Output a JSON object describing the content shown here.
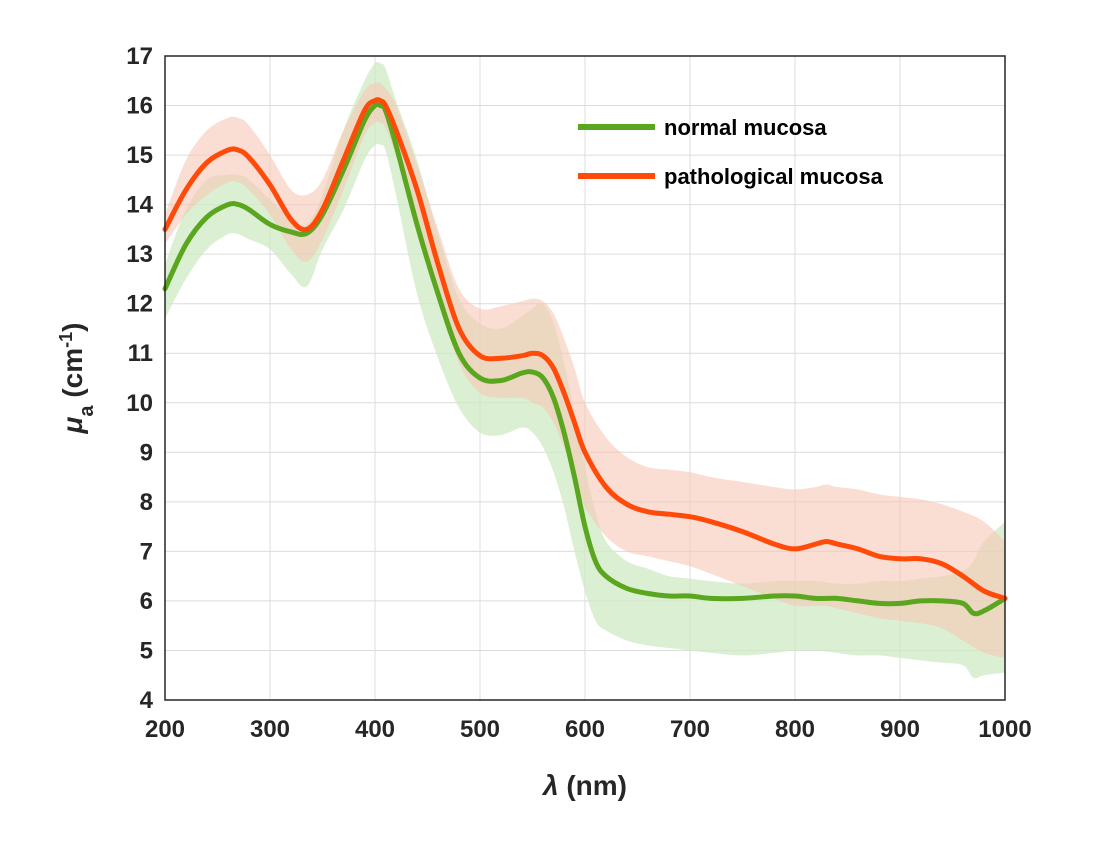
{
  "chart_data": {
    "type": "line",
    "xlabel": {
      "symbol": "λ",
      "unit": " (nm)"
    },
    "ylabel": {
      "symbol": "μ",
      "sub": "a",
      "unit_open": " (cm",
      "sup": "-1",
      "unit_close": ")"
    },
    "xlim": [
      200,
      1000
    ],
    "ylim": [
      4,
      17
    ],
    "xticks": [
      200,
      300,
      400,
      500,
      600,
      700,
      800,
      900,
      1000
    ],
    "yticks": [
      4,
      5,
      6,
      7,
      8,
      9,
      10,
      11,
      12,
      13,
      14,
      15,
      16,
      17
    ],
    "grid": true,
    "legend_position": "top-right",
    "series": [
      {
        "name": "normal mucosa",
        "color": "#5aa61e",
        "band_color": "#cfe9c4",
        "x": [
          200,
          220,
          240,
          260,
          270,
          280,
          300,
          320,
          335,
          350,
          370,
          390,
          400,
          405,
          410,
          420,
          440,
          460,
          480,
          500,
          520,
          540,
          550,
          560,
          570,
          580,
          590,
          600,
          610,
          620,
          640,
          660,
          680,
          700,
          720,
          750,
          780,
          800,
          820,
          840,
          860,
          880,
          900,
          920,
          940,
          960,
          970,
          980,
          1000
        ],
        "y": [
          12.3,
          13.2,
          13.75,
          14.0,
          14.0,
          13.9,
          13.6,
          13.45,
          13.42,
          13.8,
          14.7,
          15.7,
          16.0,
          16.0,
          15.9,
          15.2,
          13.6,
          12.2,
          11.0,
          10.5,
          10.45,
          10.6,
          10.62,
          10.5,
          10.1,
          9.4,
          8.5,
          7.5,
          6.8,
          6.5,
          6.25,
          6.15,
          6.1,
          6.1,
          6.05,
          6.05,
          6.1,
          6.1,
          6.05,
          6.05,
          6.0,
          5.95,
          5.95,
          6.0,
          6.0,
          5.95,
          5.75,
          5.8,
          6.05
        ],
        "upper": [
          12.8,
          13.9,
          14.5,
          14.6,
          14.6,
          14.5,
          14.1,
          13.7,
          13.6,
          14.2,
          15.5,
          16.5,
          16.85,
          16.85,
          16.75,
          16.1,
          14.9,
          13.4,
          12.1,
          11.6,
          11.5,
          11.75,
          11.9,
          12.0,
          11.6,
          10.8,
          9.8,
          8.7,
          7.8,
          7.2,
          6.8,
          6.65,
          6.5,
          6.45,
          6.4,
          6.35,
          6.4,
          6.4,
          6.4,
          6.35,
          6.35,
          6.4,
          6.4,
          6.45,
          6.5,
          6.6,
          6.8,
          7.2,
          7.6
        ],
        "lower": [
          11.7,
          12.5,
          13.1,
          13.4,
          13.4,
          13.3,
          13.1,
          12.6,
          12.35,
          13.1,
          13.9,
          14.9,
          15.2,
          15.2,
          15.1,
          14.2,
          12.2,
          10.9,
          9.9,
          9.4,
          9.35,
          9.5,
          9.4,
          9.1,
          8.6,
          7.9,
          7.0,
          6.2,
          5.6,
          5.4,
          5.2,
          5.1,
          5.05,
          5.0,
          4.95,
          4.9,
          4.95,
          5.0,
          5.0,
          4.95,
          4.9,
          4.9,
          4.85,
          4.8,
          4.75,
          4.7,
          4.45,
          4.5,
          4.55
        ]
      },
      {
        "name": "pathological mucosa",
        "color": "#ff4a0a",
        "band_color": "#f7c7b5",
        "x": [
          200,
          220,
          240,
          260,
          270,
          280,
          300,
          320,
          335,
          350,
          370,
          390,
          400,
          405,
          410,
          420,
          440,
          460,
          480,
          500,
          520,
          540,
          550,
          560,
          570,
          580,
          590,
          600,
          620,
          640,
          660,
          680,
          700,
          720,
          750,
          780,
          800,
          820,
          830,
          840,
          860,
          880,
          900,
          920,
          940,
          960,
          980,
          1000
        ],
        "y": [
          13.5,
          14.3,
          14.85,
          15.1,
          15.1,
          14.95,
          14.4,
          13.7,
          13.5,
          13.9,
          14.9,
          15.9,
          16.1,
          16.1,
          16.0,
          15.5,
          14.3,
          12.8,
          11.5,
          10.95,
          10.9,
          10.95,
          11.0,
          10.95,
          10.7,
          10.2,
          9.6,
          9.0,
          8.3,
          7.95,
          7.8,
          7.75,
          7.7,
          7.6,
          7.4,
          7.15,
          7.05,
          7.15,
          7.2,
          7.15,
          7.05,
          6.9,
          6.85,
          6.85,
          6.75,
          6.5,
          6.2,
          6.05
        ],
        "upper": [
          13.8,
          14.9,
          15.5,
          15.75,
          15.75,
          15.6,
          15.0,
          14.3,
          14.2,
          14.5,
          15.5,
          16.3,
          16.45,
          16.45,
          16.35,
          16.0,
          14.8,
          13.5,
          12.3,
          11.9,
          11.95,
          12.05,
          12.1,
          12.05,
          11.8,
          11.3,
          10.7,
          10.0,
          9.3,
          8.9,
          8.7,
          8.65,
          8.6,
          8.5,
          8.4,
          8.3,
          8.25,
          8.3,
          8.35,
          8.3,
          8.25,
          8.15,
          8.1,
          8.05,
          7.95,
          7.8,
          7.6,
          7.2
        ],
        "lower": [
          13.2,
          13.8,
          14.2,
          14.45,
          14.45,
          14.3,
          13.8,
          13.1,
          12.85,
          13.3,
          14.3,
          15.4,
          15.65,
          15.65,
          15.55,
          15.0,
          13.8,
          12.2,
          10.8,
          10.2,
          10.1,
          10.1,
          10.0,
          9.9,
          9.6,
          9.1,
          8.5,
          7.9,
          7.3,
          7.0,
          6.9,
          6.8,
          6.7,
          6.55,
          6.3,
          6.05,
          5.9,
          5.9,
          5.9,
          5.85,
          5.75,
          5.65,
          5.6,
          5.55,
          5.45,
          5.2,
          4.95,
          4.85
        ]
      }
    ]
  }
}
